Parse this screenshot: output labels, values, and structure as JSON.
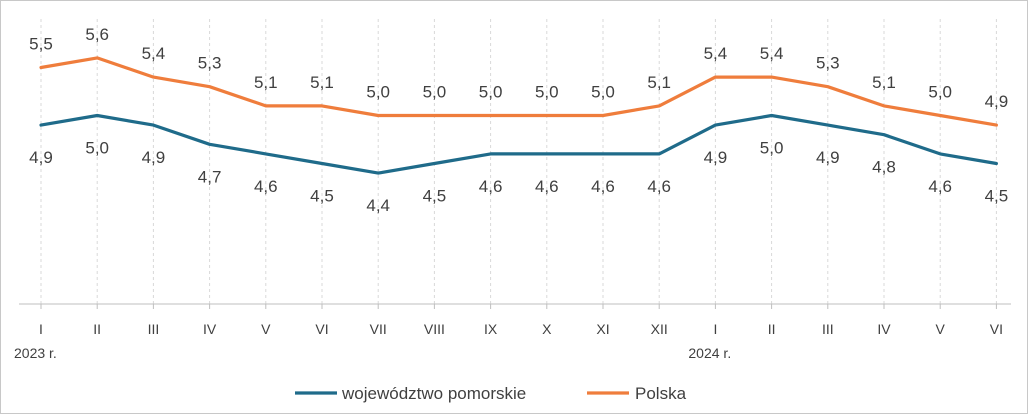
{
  "chart_data": {
    "type": "line",
    "categories": [
      "I",
      "II",
      "III",
      "IV",
      "V",
      "VI",
      "VII",
      "VIII",
      "IX",
      "X",
      "XI",
      "XII",
      "I",
      "II",
      "III",
      "IV",
      "V",
      "VI"
    ],
    "year_labels": [
      {
        "index": 0,
        "label": "2023 r."
      },
      {
        "index": 12,
        "label": "2024 r."
      }
    ],
    "series": [
      {
        "name": "województwo pomorskie",
        "color": "#1f6b8a",
        "values": [
          4.9,
          5.0,
          4.9,
          4.7,
          4.6,
          4.5,
          4.4,
          4.5,
          4.6,
          4.6,
          4.6,
          4.6,
          4.9,
          5.0,
          4.9,
          4.8,
          4.6,
          4.5
        ],
        "labels": [
          "4,9",
          "5,0",
          "4,9",
          "4,7",
          "4,6",
          "4,5",
          "4,4",
          "4,5",
          "4,6",
          "4,6",
          "4,6",
          "4,6",
          "4,9",
          "5,0",
          "4,9",
          "4,8",
          "4,6",
          "4,5"
        ]
      },
      {
        "name": "Polska",
        "color": "#ef7d3c",
        "values": [
          5.5,
          5.6,
          5.4,
          5.3,
          5.1,
          5.1,
          5.0,
          5.0,
          5.0,
          5.0,
          5.0,
          5.1,
          5.4,
          5.4,
          5.3,
          5.1,
          5.0,
          4.9
        ],
        "labels": [
          "5,5",
          "5,6",
          "5,4",
          "5,3",
          "5,1",
          "5,1",
          "5,0",
          "5,0",
          "5,0",
          "5,0",
          "5,0",
          "5,1",
          "5,4",
          "5,4",
          "5,3",
          "5,1",
          "5,0",
          "4,9"
        ]
      }
    ],
    "legend_position": "bottom",
    "grid": "vertical-dashed",
    "axis_color": "#bfbfbf",
    "grid_color": "#d9d9d9"
  }
}
